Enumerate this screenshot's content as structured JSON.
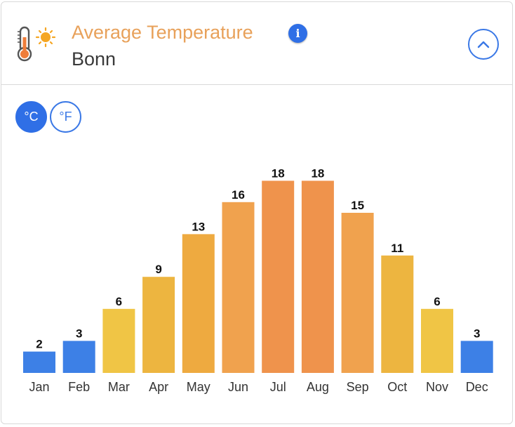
{
  "header": {
    "title": "Average Temperature",
    "location": "Bonn",
    "thermometer_icon": "thermometer-sun-icon",
    "info_icon": "info-icon",
    "collapse_icon": "chevron-up-icon"
  },
  "units": {
    "celsius_label": "°C",
    "fahrenheit_label": "°F",
    "selected": "°C"
  },
  "colors": {
    "accent": "#2f6fe6",
    "title": "#e8a15a",
    "cold": "#3d80e6",
    "cool_warm": "#f0c545",
    "mild": "#edb540",
    "warm": "#eeaa40",
    "warmer": "#f0a24e",
    "hot": "#ef934c"
  },
  "chart_data": {
    "type": "bar",
    "categories": [
      "Jan",
      "Feb",
      "Mar",
      "Apr",
      "May",
      "Jun",
      "Jul",
      "Aug",
      "Sep",
      "Oct",
      "Nov",
      "Dec"
    ],
    "values": [
      2,
      3,
      6,
      9,
      13,
      16,
      18,
      18,
      15,
      11,
      6,
      3
    ],
    "bar_colors": [
      "#3d80e6",
      "#3d80e6",
      "#f0c545",
      "#edb540",
      "#eeaa40",
      "#f0a24e",
      "#ef934c",
      "#ef934c",
      "#f0a24e",
      "#edb540",
      "#f0c545",
      "#3d80e6"
    ],
    "unit": "°C",
    "title": "",
    "xlabel": "",
    "ylabel": "",
    "ylim": [
      0,
      18
    ],
    "grid": false,
    "legend": false,
    "data_labels": true
  }
}
